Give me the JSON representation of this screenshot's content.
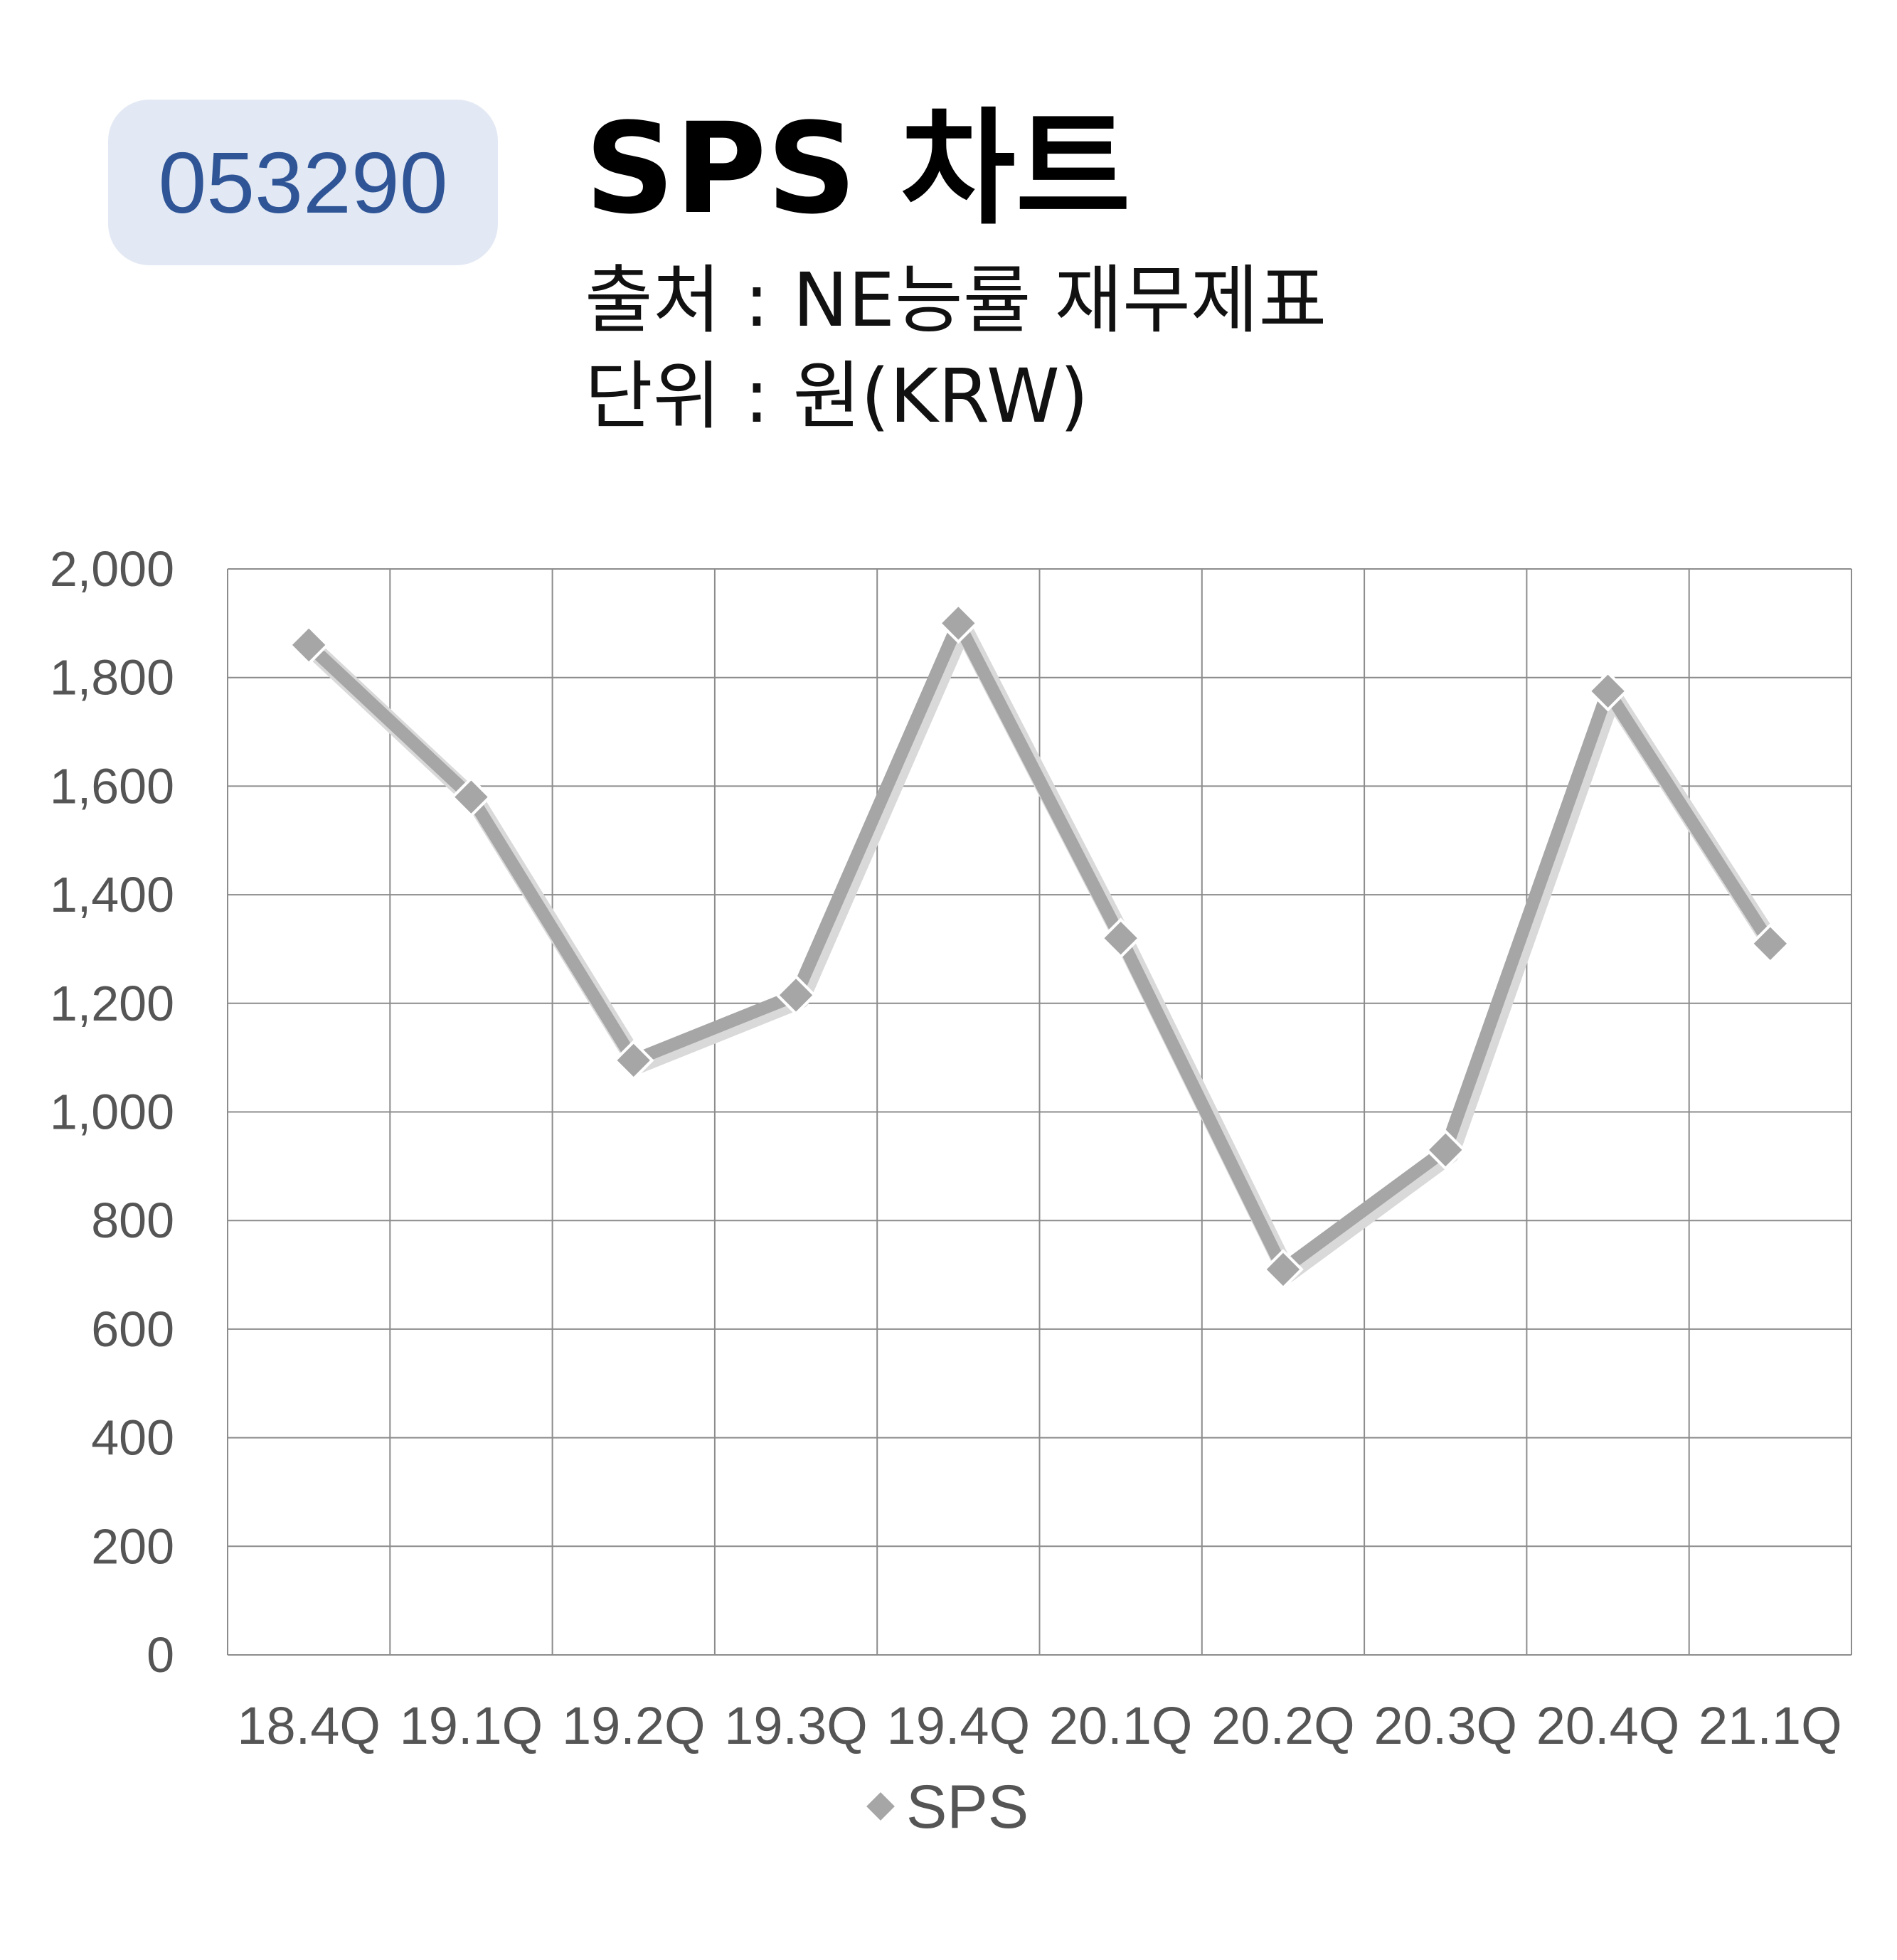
{
  "header": {
    "code": "053290",
    "title": "SPS 차트",
    "source": "출처 : NE능률 재무제표",
    "unit": "단위 : 원(KRW)"
  },
  "colors": {
    "badge_bg": "#e3e9f4",
    "badge_text": "#2f5597",
    "series_line": "#a6a6a6",
    "grid": "#8c8c8c"
  },
  "chart_data": {
    "type": "line",
    "categories": [
      "18.4Q",
      "19.1Q",
      "19.2Q",
      "19.3Q",
      "19.4Q",
      "20.1Q",
      "20.2Q",
      "20.3Q",
      "20.4Q",
      "21.1Q"
    ],
    "series": [
      {
        "name": "SPS",
        "values": [
          1860,
          1580,
          1095,
          1215,
          1900,
          1320,
          710,
          930,
          1775,
          1310
        ],
        "marker": "diamond"
      }
    ],
    "ylim": [
      0,
      2000
    ],
    "yticks": [
      0,
      200,
      400,
      600,
      800,
      1000,
      1200,
      1400,
      1600,
      1800,
      2000
    ],
    "ytick_labels": [
      "0",
      "200",
      "400",
      "600",
      "800",
      "1,000",
      "1,200",
      "1,400",
      "1,600",
      "1,800",
      "2,000"
    ],
    "grid": true,
    "legend": "bottom"
  }
}
